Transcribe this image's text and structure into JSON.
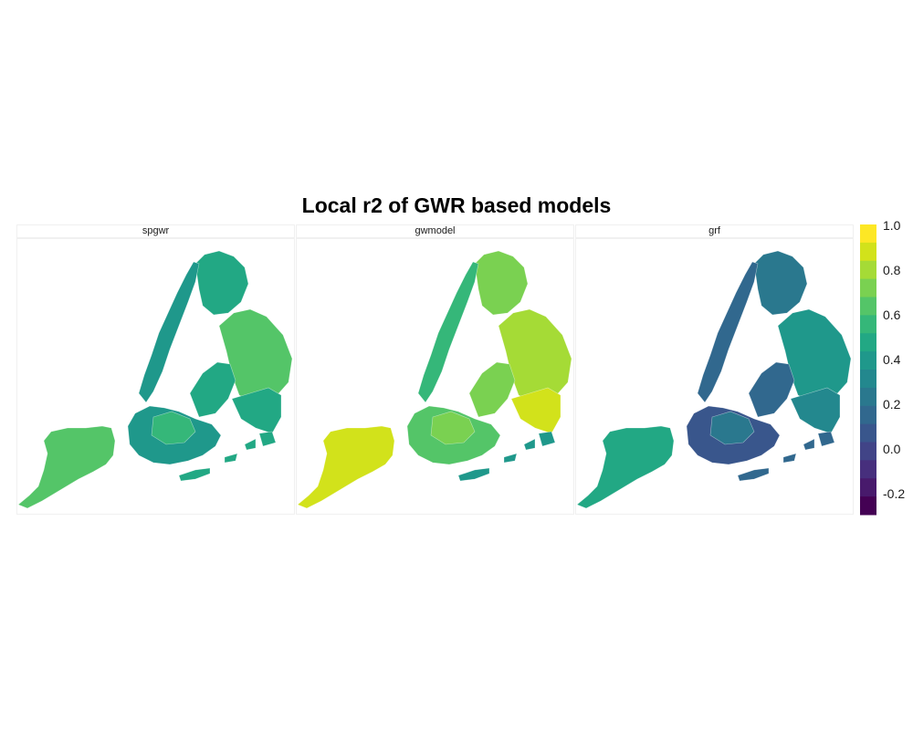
{
  "title": "Local r2 of GWR based models",
  "legend": {
    "min": -0.3,
    "max": 1.0,
    "step": 0.1,
    "colors": [
      "#440154",
      "#481a6c",
      "#472f7d",
      "#414487",
      "#39568c",
      "#31688e",
      "#2a788e",
      "#23888e",
      "#1f988b",
      "#22a884",
      "#35b779",
      "#54c568",
      "#7ad151",
      "#a5db36",
      "#d2e21b",
      "#fde725"
    ],
    "tick_labels": [
      "1.0",
      "0.8",
      "0.6",
      "0.4",
      "0.2",
      "0.0",
      "-0.2"
    ],
    "tick_values": [
      1.0,
      0.8,
      0.6,
      0.4,
      0.2,
      0.0,
      -0.2
    ]
  },
  "panels": [
    {
      "label": "spgwr",
      "regions": {
        "staten_island": 0.64,
        "brooklyn": 0.42,
        "brooklyn_central": 0.55,
        "queens_west": 0.48,
        "queens_east": 0.66,
        "queens_southeast": 0.46,
        "manhattan": 0.38,
        "bronx": 0.45,
        "rockaway": 0.5
      }
    },
    {
      "label": "gwmodel",
      "regions": {
        "staten_island": 0.86,
        "brooklyn": 0.64,
        "brooklyn_central": 0.72,
        "queens_west": 0.68,
        "queens_east": 0.8,
        "queens_southeast": 0.85,
        "manhattan": 0.58,
        "bronx": 0.7,
        "rockaway": 0.4
      }
    },
    {
      "label": "grf",
      "regions": {
        "staten_island": 0.45,
        "brooklyn": 0.1,
        "brooklyn_central": 0.2,
        "queens_west": 0.18,
        "queens_east": 0.38,
        "queens_southeast": 0.3,
        "manhattan": 0.15,
        "bronx": 0.22,
        "rockaway": 0.15
      }
    }
  ]
}
